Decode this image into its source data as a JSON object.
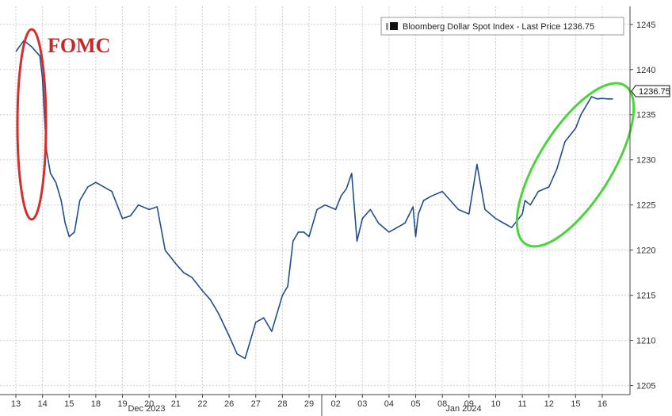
{
  "chart_data": {
    "type": "line",
    "ylim": [
      1204,
      1247
    ],
    "yticks": [
      1205,
      1210,
      1215,
      1220,
      1225,
      1230,
      1235,
      1240,
      1245
    ],
    "x_tick_labels": [
      "13",
      "14",
      "15",
      "18",
      "19",
      "20",
      "21",
      "22",
      "26",
      "27",
      "28",
      "29",
      "02",
      "03",
      "04",
      "05",
      "08",
      "09",
      "10",
      "11",
      "12",
      "15",
      "16"
    ],
    "month_labels": [
      "Dec 2023",
      "Jan 2024"
    ],
    "legend": "Bloomberg Dollar Spot Index - Last Price 1236.75",
    "last_price_label": "1236.75",
    "annotation": "FOMC",
    "grid": true,
    "series": [
      {
        "name": "Bloomberg Dollar Spot Index",
        "color": "#1f4e8c",
        "x": [
          0,
          0.3,
          0.6,
          0.9,
          1.0,
          1.05,
          1.15,
          1.3,
          1.5,
          1.7,
          1.85,
          2.0,
          2.2,
          2.4,
          2.7,
          3.0,
          3.3,
          3.6,
          4.0,
          4.3,
          4.6,
          5.0,
          5.3,
          5.6,
          6.0,
          6.3,
          6.6,
          7.0,
          7.3,
          7.6,
          8.0,
          8.3,
          8.6,
          9.0,
          9.3,
          9.6,
          10.0,
          10.2,
          10.4,
          10.6,
          10.8,
          11.0,
          11.3,
          11.6,
          12.0,
          12.2,
          12.4,
          12.6,
          12.8,
          13.0,
          13.3,
          13.6,
          14.0,
          14.3,
          14.6,
          14.9,
          15.0,
          15.1,
          15.3,
          15.6,
          16.0,
          16.3,
          16.6,
          17.0,
          17.3,
          17.6,
          18.0,
          18.3,
          18.6,
          19.0,
          19.1,
          19.3,
          19.6,
          20.0,
          20.3,
          20.6,
          21.0,
          21.2,
          21.4,
          21.6,
          21.8,
          22.0,
          22.2,
          22.4
        ],
        "y": [
          1242,
          1243.2,
          1242.5,
          1241.5,
          1239.0,
          1236.0,
          1231.0,
          1228.5,
          1227.5,
          1225.5,
          1223.0,
          1221.5,
          1222.0,
          1225.5,
          1227.0,
          1227.5,
          1227.0,
          1226.5,
          1223.5,
          1223.8,
          1225.0,
          1224.5,
          1224.8,
          1220.0,
          1218.5,
          1217.5,
          1217.0,
          1215.5,
          1214.5,
          1213.0,
          1210.5,
          1208.5,
          1208.0,
          1212.0,
          1212.5,
          1211.0,
          1215.0,
          1216.0,
          1221.0,
          1222.0,
          1222.0,
          1221.5,
          1224.5,
          1225.0,
          1224.5,
          1226.0,
          1226.8,
          1228.5,
          1221.0,
          1223.5,
          1224.5,
          1223.0,
          1222.0,
          1222.5,
          1223.0,
          1224.8,
          1221.5,
          1224.0,
          1225.5,
          1226.0,
          1226.5,
          1225.5,
          1224.5,
          1224.0,
          1229.5,
          1224.5,
          1223.5,
          1223.0,
          1222.5,
          1224.0,
          1225.5,
          1225.0,
          1226.5,
          1227.0,
          1229.0,
          1232.0,
          1233.5,
          1235.0,
          1236.0,
          1237.0,
          1236.75,
          1236.8,
          1236.75,
          1236.75
        ]
      }
    ]
  }
}
